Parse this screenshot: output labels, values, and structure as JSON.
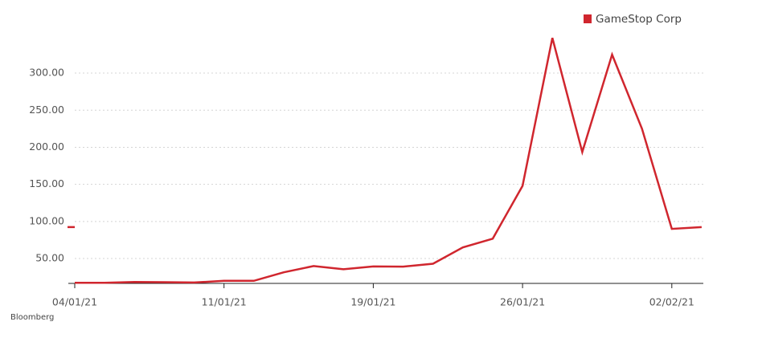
{
  "chart_data": {
    "type": "line",
    "categories": [
      "04/01/21",
      null,
      null,
      null,
      null,
      "11/01/21",
      null,
      null,
      null,
      null,
      "19/01/21",
      null,
      null,
      null,
      null,
      "26/01/21",
      null,
      null,
      null,
      null,
      "02/02/21",
      null
    ],
    "series": [
      {
        "name": "GameStop Corp",
        "color": "#d0262e",
        "values": [
          17.25,
          17.37,
          18.36,
          18.08,
          17.69,
          19.94,
          19.95,
          31.4,
          39.91,
          35.5,
          39.36,
          39.12,
          43.03,
          65.01,
          76.79,
          147.98,
          347.51,
          193.6,
          325.0,
          225.0,
          90.0,
          92.41
        ]
      }
    ],
    "ylim": [
      16.5,
      365
    ],
    "yticks": [
      {
        "value": 50,
        "label": "50.00"
      },
      {
        "value": 100,
        "label": "100.00"
      },
      {
        "value": 150,
        "label": "150.00"
      },
      {
        "value": 200,
        "label": "200.00"
      },
      {
        "value": 250,
        "label": "250.00"
      },
      {
        "value": 300,
        "label": "300.00"
      }
    ],
    "grid": true,
    "legend": "top-right",
    "source": "Bloomberg"
  }
}
